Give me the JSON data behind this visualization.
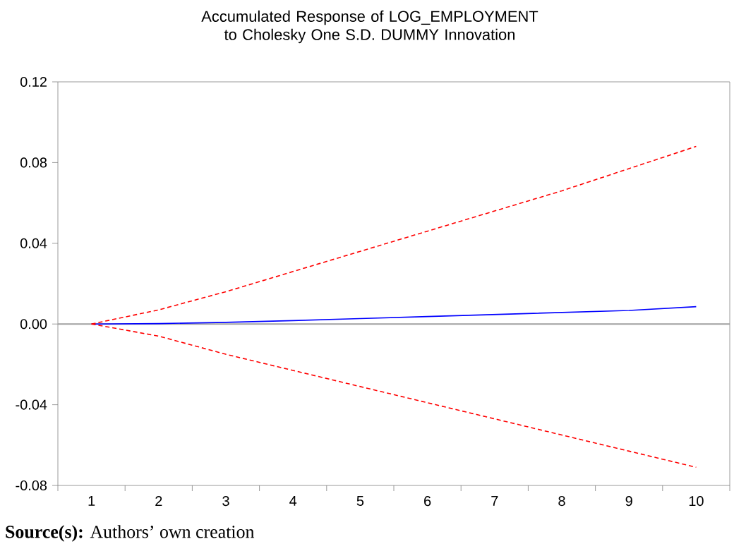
{
  "chart_data": {
    "type": "line",
    "title": "Accumulated Response of LOG_EMPLOYMENT to Cholesky One S.D. DUMMY Innovation",
    "categories": [
      "1",
      "2",
      "3",
      "4",
      "5",
      "6",
      "7",
      "8",
      "9",
      "10"
    ],
    "series": [
      {
        "color": "#0000ff",
        "line_style": "solid",
        "values": [
          0,
          0.0002,
          0.0008,
          0.0017,
          0.0027,
          0.0037,
          0.0047,
          0.0057,
          0.0067,
          0.0086
        ]
      },
      {
        "color": "#ff0000",
        "line_style": "dashed",
        "values": [
          0,
          0.007,
          0.016,
          0.026,
          0.036,
          0.046,
          0.056,
          0.066,
          0.077,
          0.088
        ]
      },
      {
        "color": "#ff0000",
        "line_style": "dashed",
        "values": [
          0,
          -0.006,
          -0.015,
          -0.023,
          -0.031,
          -0.039,
          -0.047,
          -0.055,
          -0.063,
          -0.071
        ]
      }
    ],
    "ylim": [
      -0.08,
      0.12
    ],
    "yticks": [
      -0.08,
      -0.04,
      {
        "value": 0,
        "label": "0.00"
      },
      0.04,
      0.08,
      0.12
    ],
    "ref_lines": [
      {
        "axis": "y",
        "value": 0,
        "color": "#a0a0a0"
      }
    ],
    "grid": false,
    "marker": "none",
    "annotations": [
      "**Source(s):** Authors’ own creation"
    ]
  }
}
